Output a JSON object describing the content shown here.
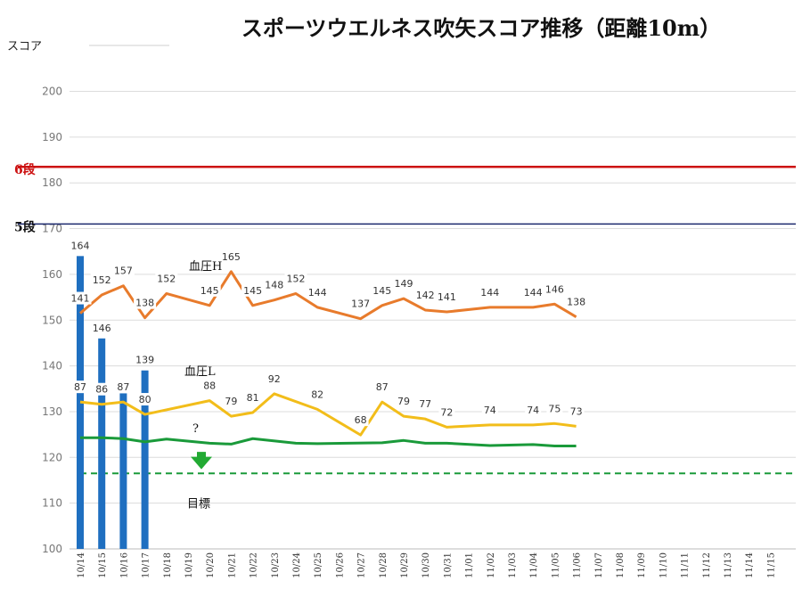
{
  "chart_data": {
    "type": "line",
    "title": "スポーツウエルネス吹矢スコア推移（距離10m）",
    "ylabel": "スコア",
    "xlabel": "",
    "ylim": [
      100,
      205
    ],
    "yticks": [
      100,
      110,
      120,
      130,
      140,
      150,
      160,
      170,
      180,
      190,
      200
    ],
    "grid": true,
    "x": [
      "10/14",
      "10/15",
      "10/16",
      "10/17",
      "10/18",
      "10/19",
      "10/20",
      "10/21",
      "10/22",
      "10/23",
      "10/24",
      "10/25",
      "10/26",
      "10/27",
      "10/28",
      "10/29",
      "10/30",
      "10/31",
      "11/01",
      "11/02",
      "11/03",
      "11/04",
      "11/05",
      "11/06",
      "11/07",
      "11/08",
      "11/09",
      "11/10",
      "11/11",
      "11/12",
      "11/13",
      "11/14",
      "11/15"
    ],
    "bars": {
      "color": "#1f6fc0",
      "points": [
        {
          "x": "10/14",
          "value": 164,
          "label": "164"
        },
        {
          "x": "10/15",
          "value": 146,
          "label": "146"
        },
        {
          "x": "10/16",
          "value": 134,
          "label": ""
        },
        {
          "x": "10/17",
          "value": 139,
          "label": "139"
        }
      ]
    },
    "series": [
      {
        "name": "血圧H",
        "color": "#e87b2c",
        "points": [
          {
            "x": "10/14",
            "value": 151.5,
            "label": "141"
          },
          {
            "x": "10/15",
            "value": 155.5,
            "label": "152"
          },
          {
            "x": "10/16",
            "value": 157.5,
            "label": "157"
          },
          {
            "x": "10/17",
            "value": 150.5,
            "label": "138"
          },
          {
            "x": "10/18",
            "value": 155.8,
            "label": "152"
          },
          {
            "x": "10/20",
            "value": 153.2,
            "label": "145"
          },
          {
            "x": "10/21",
            "value": 160.6,
            "label": "165"
          },
          {
            "x": "10/22",
            "value": 153.2,
            "label": "145"
          },
          {
            "x": "10/23",
            "value": 154.4,
            "label": "148"
          },
          {
            "x": "10/24",
            "value": 155.8,
            "label": "152"
          },
          {
            "x": "10/25",
            "value": 152.8,
            "label": "144"
          },
          {
            "x": "10/27",
            "value": 150.3,
            "label": "137"
          },
          {
            "x": "10/28",
            "value": 153.2,
            "label": "145"
          },
          {
            "x": "10/29",
            "value": 154.7,
            "label": "149"
          },
          {
            "x": "10/30",
            "value": 152.2,
            "label": "142"
          },
          {
            "x": "10/31",
            "value": 151.8,
            "label": "141"
          },
          {
            "x": "11/02",
            "value": 152.8,
            "label": "144"
          },
          {
            "x": "11/04",
            "value": 152.8,
            "label": "144"
          },
          {
            "x": "11/05",
            "value": 153.5,
            "label": "146"
          },
          {
            "x": "11/06",
            "value": 150.7,
            "label": "138"
          }
        ]
      },
      {
        "name": "血圧L",
        "color": "#f2bd1a",
        "points": [
          {
            "x": "10/14",
            "value": 132.1,
            "label": "87"
          },
          {
            "x": "10/15",
            "value": 131.6,
            "label": "86"
          },
          {
            "x": "10/16",
            "value": 132.1,
            "label": "87"
          },
          {
            "x": "10/17",
            "value": 129.4,
            "label": "80"
          },
          {
            "x": "10/20",
            "value": 132.4,
            "label": "88"
          },
          {
            "x": "10/21",
            "value": 129.0,
            "label": "79"
          },
          {
            "x": "10/22",
            "value": 129.8,
            "label": "81"
          },
          {
            "x": "10/23",
            "value": 133.9,
            "label": "92"
          },
          {
            "x": "10/25",
            "value": 130.5,
            "label": "82"
          },
          {
            "x": "10/27",
            "value": 124.9,
            "label": "68"
          },
          {
            "x": "10/28",
            "value": 132.1,
            "label": "87"
          },
          {
            "x": "10/29",
            "value": 129.0,
            "label": "79"
          },
          {
            "x": "10/30",
            "value": 128.4,
            "label": "77"
          },
          {
            "x": "10/31",
            "value": 126.6,
            "label": "72"
          },
          {
            "x": "11/02",
            "value": 127.1,
            "label": "74"
          },
          {
            "x": "11/04",
            "value": 127.1,
            "label": "74"
          },
          {
            "x": "11/05",
            "value": 127.4,
            "label": "75"
          },
          {
            "x": "11/06",
            "value": 126.8,
            "label": "73"
          }
        ]
      },
      {
        "name": "",
        "color": "#1a9a3a",
        "points": [
          {
            "x": "10/14",
            "value": 124.3
          },
          {
            "x": "10/15",
            "value": 124.3
          },
          {
            "x": "10/16",
            "value": 124.1
          },
          {
            "x": "10/17",
            "value": 123.4
          },
          {
            "x": "10/18",
            "value": 124.0
          },
          {
            "x": "10/20",
            "value": 123.1
          },
          {
            "x": "10/21",
            "value": 122.9
          },
          {
            "x": "10/22",
            "value": 124.1
          },
          {
            "x": "10/24",
            "value": 123.1
          },
          {
            "x": "10/25",
            "value": 123.0
          },
          {
            "x": "10/28",
            "value": 123.2
          },
          {
            "x": "10/29",
            "value": 123.7
          },
          {
            "x": "10/30",
            "value": 123.1
          },
          {
            "x": "10/31",
            "value": 123.1
          },
          {
            "x": "11/02",
            "value": 122.6
          },
          {
            "x": "11/04",
            "value": 122.8
          },
          {
            "x": "11/05",
            "value": 122.5
          },
          {
            "x": "11/06",
            "value": 122.5
          }
        ]
      }
    ],
    "reference_lines": [
      {
        "label": "6段",
        "value": 183.5,
        "color": "#cc1111",
        "style": "solid"
      },
      {
        "label": "5段",
        "value": 171.0,
        "color": "#1c2a6e",
        "style": "solid"
      },
      {
        "label": "目標",
        "value": 116.5,
        "color": "#1a9a3a",
        "style": "dashed"
      }
    ],
    "annotations": [
      {
        "text": "血圧H",
        "near_series": "血圧H"
      },
      {
        "text": "血圧L",
        "near_series": "血圧L"
      },
      {
        "text": "?",
        "marker": "question"
      }
    ],
    "arrow_color": "#22aa33"
  }
}
